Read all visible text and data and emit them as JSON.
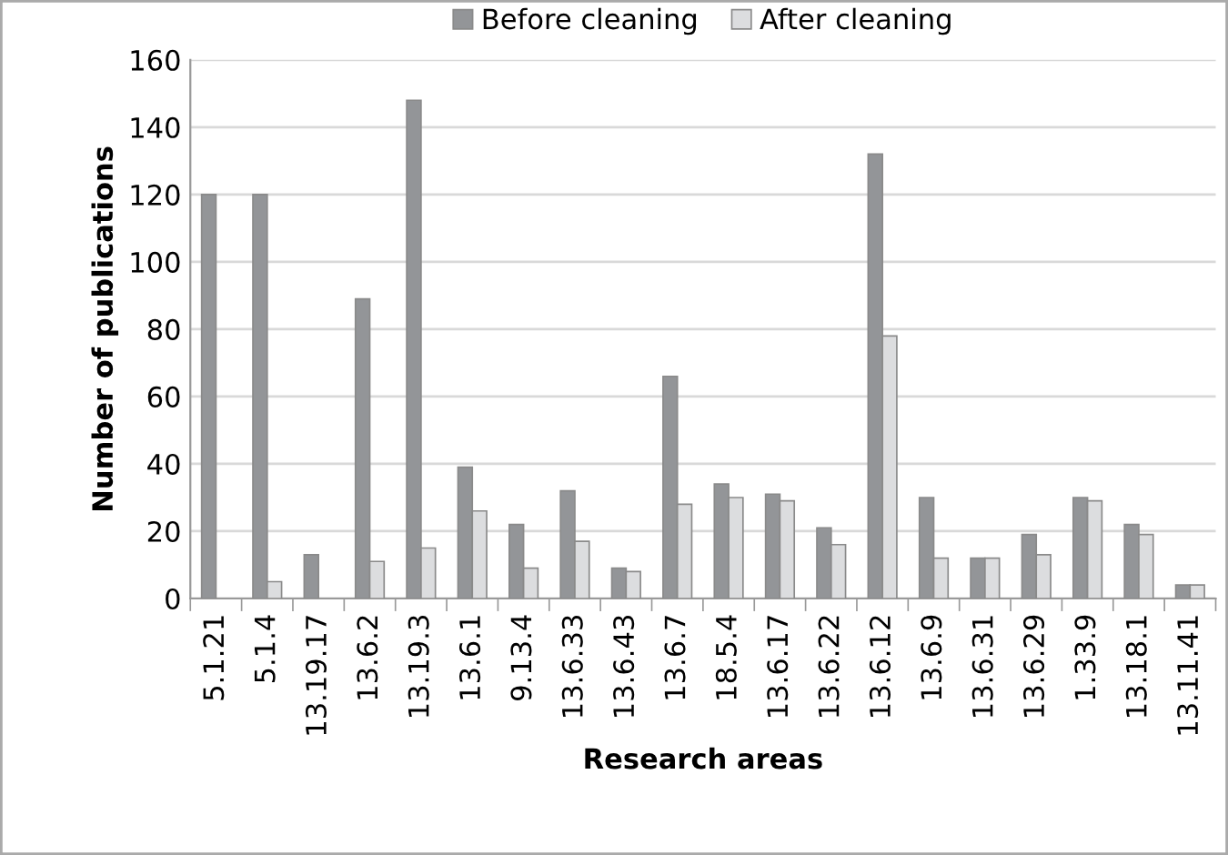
{
  "chart_data": {
    "type": "bar",
    "xlabel": "Research areas",
    "ylabel": "Number of publications",
    "categories": [
      "5.1.21",
      "5.1.4",
      "13.19.17",
      "13.6.2",
      "13.19.3",
      "13.6.1",
      "9.13.4",
      "13.6.33",
      "13.6.43",
      "13.6.7",
      "18.5.4",
      "13.6.17",
      "13.6.22",
      "13.6.12",
      "13.6.9",
      "13.6.31",
      "13.6.29",
      "1.33.9",
      "13.18.1",
      "13.11.41"
    ],
    "series": [
      {
        "name": "Before cleaning",
        "color": "#939598",
        "values": [
          120,
          120,
          13,
          89,
          148,
          39,
          22,
          32,
          9,
          66,
          34,
          31,
          21,
          132,
          30,
          12,
          19,
          30,
          22,
          4
        ]
      },
      {
        "name": "After cleaning",
        "color": "#dcdddf",
        "values": [
          null,
          5,
          null,
          11,
          15,
          26,
          9,
          17,
          8,
          28,
          30,
          29,
          16,
          78,
          12,
          12,
          13,
          29,
          19,
          4
        ]
      }
    ],
    "ylim": [
      0,
      160
    ],
    "yticks": [
      0,
      20,
      40,
      60,
      80,
      100,
      120,
      140,
      160
    ],
    "grid": "y",
    "legend": "top"
  }
}
